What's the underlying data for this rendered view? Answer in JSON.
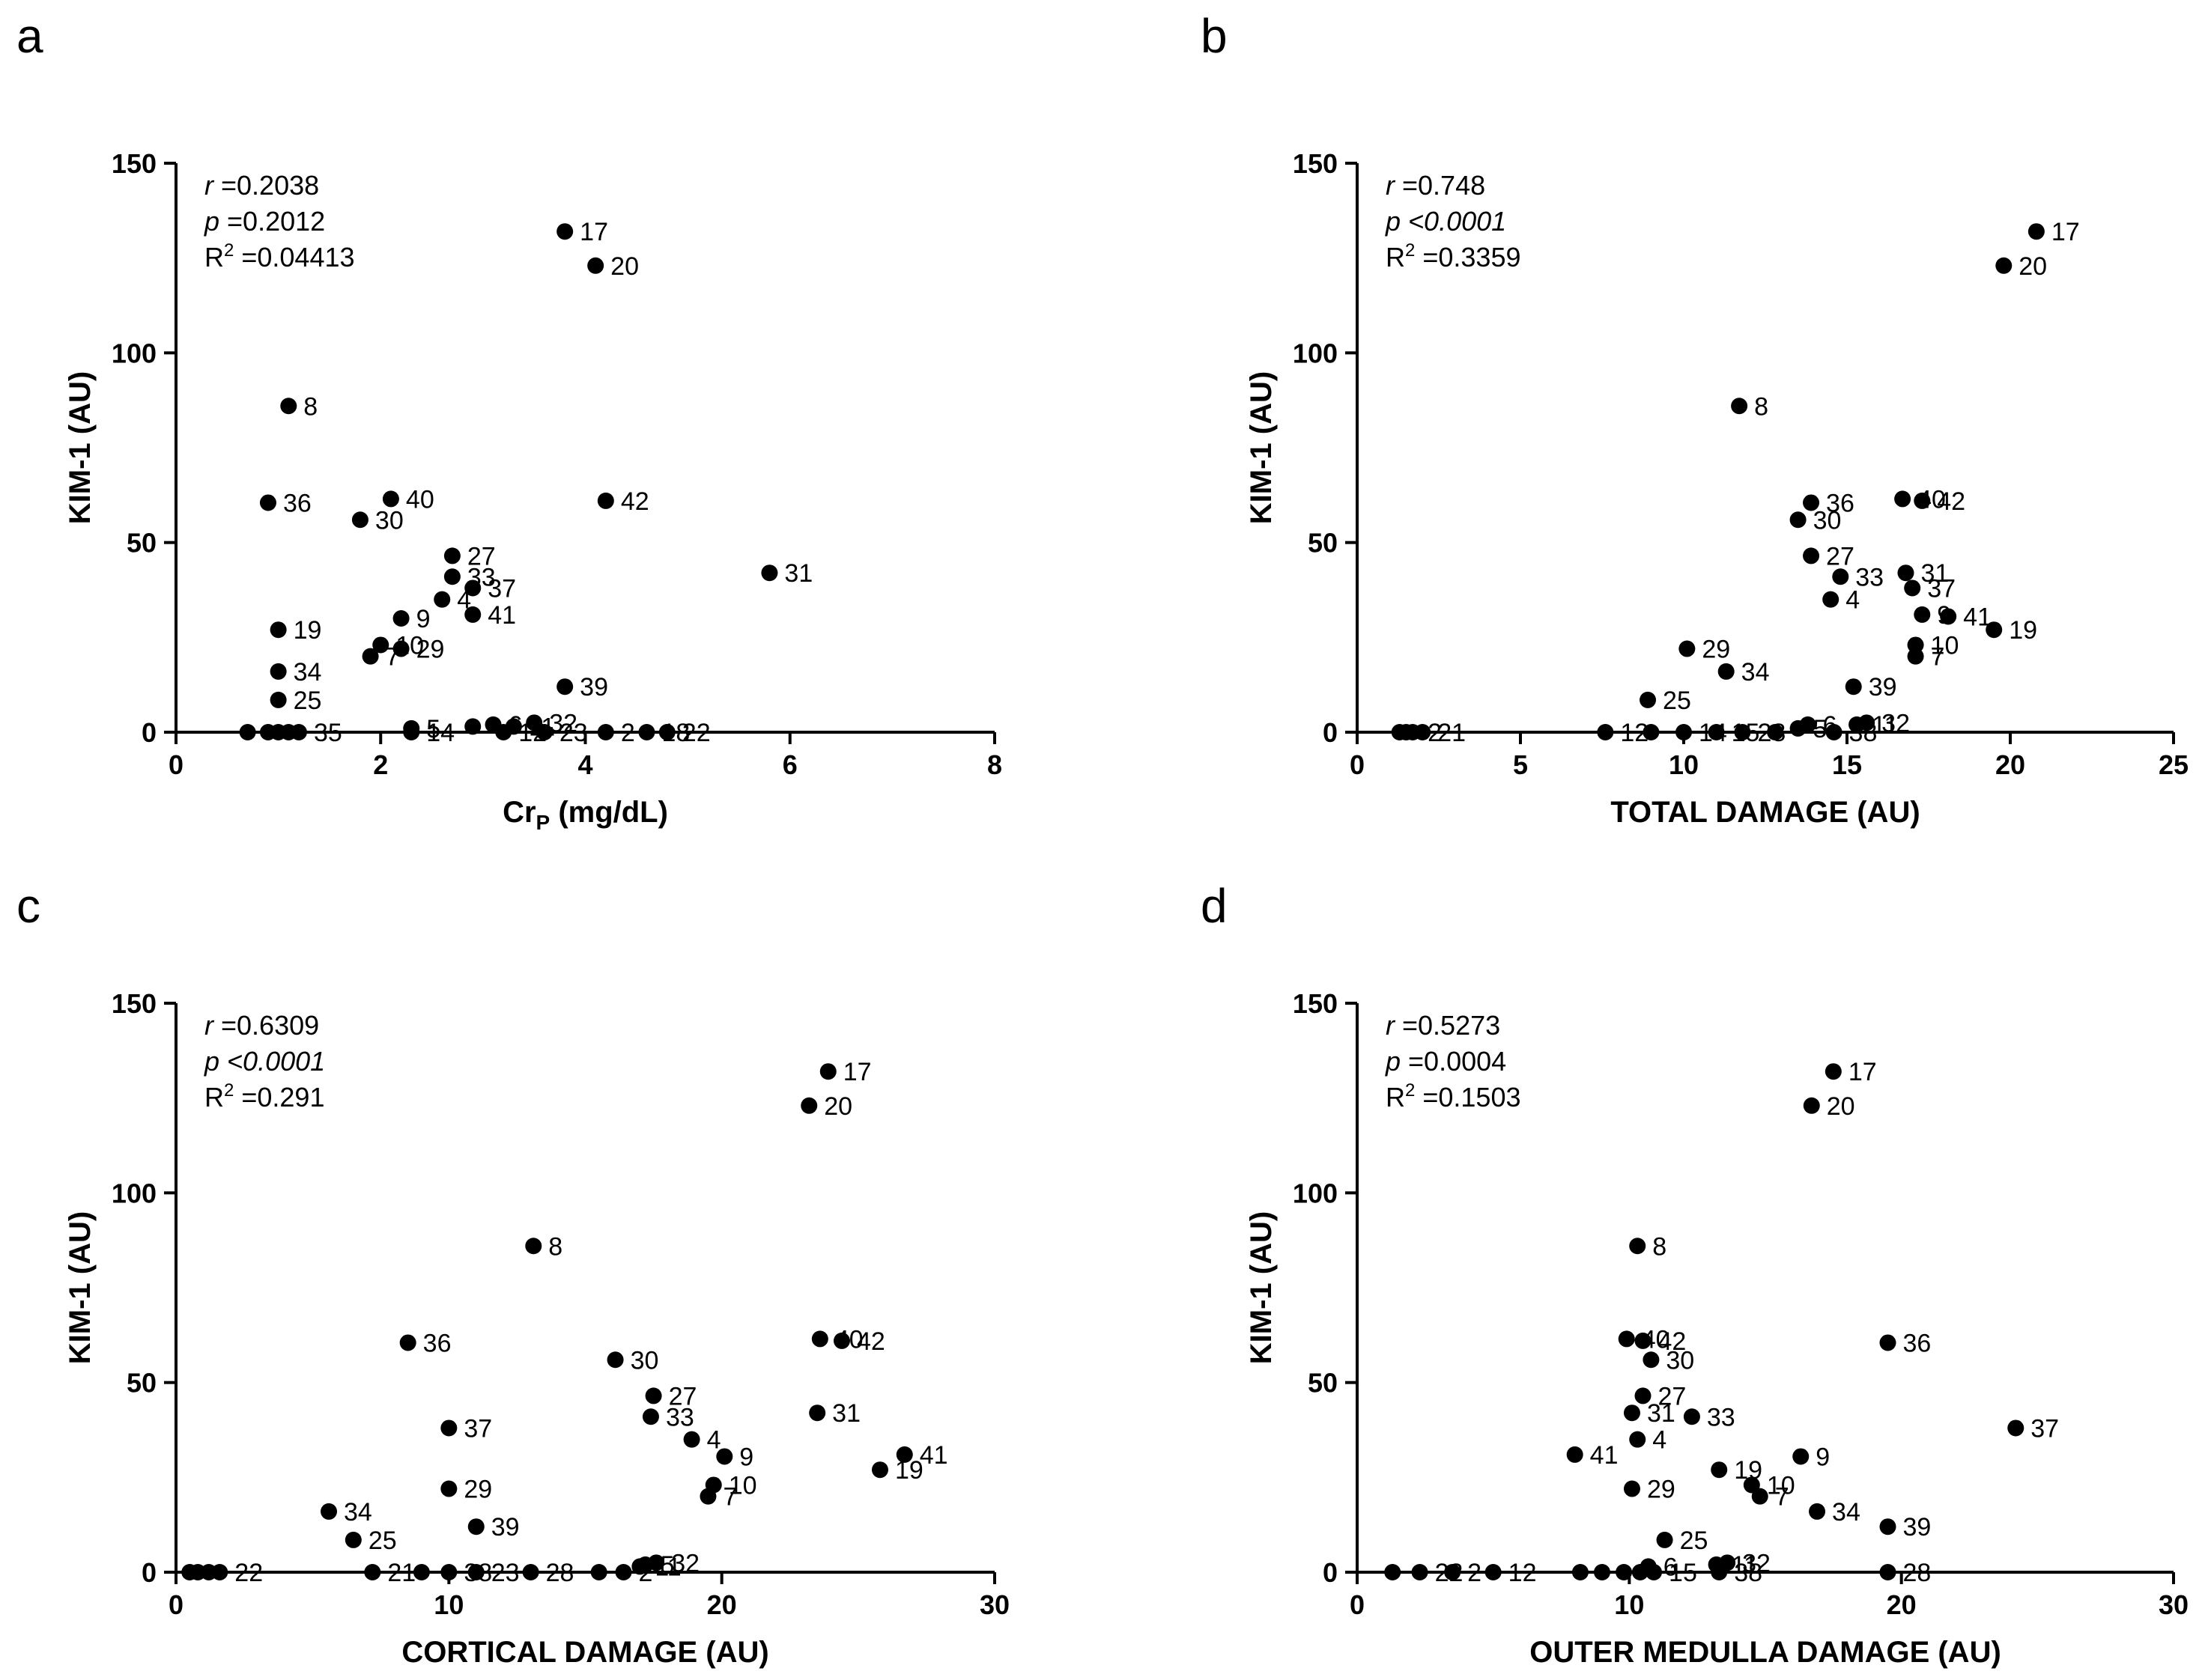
{
  "chart_data": [
    {
      "type": "scatter",
      "panel": "a",
      "xlabel": "Cr",
      "xlabel_sub": "P",
      "xlabel_tail": " (mg/dL)",
      "ylabel": "KIM-1 (AU)",
      "xlim": [
        0,
        8
      ],
      "ylim": [
        0,
        150
      ],
      "xticks": [
        "0",
        "2",
        "4",
        "6",
        "8"
      ],
      "yticks": [
        "0",
        "50",
        "100",
        "150"
      ],
      "stats": {
        "r": "=0.2038",
        "p": "=0.2012",
        "r2": "=0.04413"
      },
      "points": [
        {
          "x": 3.8,
          "y": 132,
          "label": "17"
        },
        {
          "x": 4.1,
          "y": 123,
          "label": "20"
        },
        {
          "x": 1.1,
          "y": 86,
          "label": "8"
        },
        {
          "x": 0.9,
          "y": 60.5,
          "label": "36"
        },
        {
          "x": 2.1,
          "y": 61.5,
          "label": "40"
        },
        {
          "x": 1.8,
          "y": 56,
          "label": "30"
        },
        {
          "x": 4.2,
          "y": 61,
          "label": "42"
        },
        {
          "x": 2.7,
          "y": 46.5,
          "label": "27"
        },
        {
          "x": 2.7,
          "y": 41,
          "label": "33"
        },
        {
          "x": 2.9,
          "y": 38,
          "label": "37"
        },
        {
          "x": 2.6,
          "y": 35,
          "label": "4"
        },
        {
          "x": 2.9,
          "y": 31,
          "label": "41"
        },
        {
          "x": 5.8,
          "y": 42,
          "label": "31"
        },
        {
          "x": 2.2,
          "y": 30,
          "label": "9"
        },
        {
          "x": 1.0,
          "y": 27,
          "label": "19"
        },
        {
          "x": 2.0,
          "y": 23,
          "label": "10"
        },
        {
          "x": 2.2,
          "y": 22,
          "label": "29"
        },
        {
          "x": 1.9,
          "y": 20,
          "label": "7"
        },
        {
          "x": 1.0,
          "y": 16,
          "label": "34"
        },
        {
          "x": 3.8,
          "y": 12,
          "label": "39"
        },
        {
          "x": 1.0,
          "y": 8.5,
          "label": "25"
        },
        {
          "x": 3.5,
          "y": 2.5,
          "label": "32"
        },
        {
          "x": 3.1,
          "y": 2,
          "label": "6"
        },
        {
          "x": 3.3,
          "y": 1.5,
          "label": "11"
        },
        {
          "x": 2.3,
          "y": 1,
          "label": "5"
        },
        {
          "x": 2.9,
          "y": 1.5,
          "label": ""
        },
        {
          "x": 0.7,
          "y": 0,
          "label": ""
        },
        {
          "x": 0.9,
          "y": 0,
          "label": ""
        },
        {
          "x": 1.0,
          "y": 0,
          "label": ""
        },
        {
          "x": 1.1,
          "y": 0,
          "label": ""
        },
        {
          "x": 1.2,
          "y": 0,
          "label": "35"
        },
        {
          "x": 2.3,
          "y": 0,
          "label": "14"
        },
        {
          "x": 3.2,
          "y": 0,
          "label": "12"
        },
        {
          "x": 3.6,
          "y": 0,
          "label": "23"
        },
        {
          "x": 4.2,
          "y": 0,
          "label": "2"
        },
        {
          "x": 4.6,
          "y": 0,
          "label": "18"
        },
        {
          "x": 4.8,
          "y": 0,
          "label": "22"
        }
      ]
    },
    {
      "type": "scatter",
      "panel": "b",
      "xlabel": "TOTAL DAMAGE (AU)",
      "ylabel": "KIM-1 (AU)",
      "xlim": [
        0,
        25
      ],
      "ylim": [
        0,
        150
      ],
      "xticks": [
        "0",
        "5",
        "10",
        "15",
        "20",
        "25"
      ],
      "yticks": [
        "0",
        "50",
        "100",
        "150"
      ],
      "stats": {
        "r": "=0.748",
        "p": "<0.0001",
        "r2": "=0.3359"
      },
      "points": [
        {
          "x": 20.8,
          "y": 132,
          "label": "17"
        },
        {
          "x": 19.8,
          "y": 123,
          "label": "20"
        },
        {
          "x": 11.7,
          "y": 86,
          "label": "8"
        },
        {
          "x": 13.9,
          "y": 60.5,
          "label": "36"
        },
        {
          "x": 13.5,
          "y": 56,
          "label": "30"
        },
        {
          "x": 16.7,
          "y": 61.5,
          "label": "40"
        },
        {
          "x": 17.3,
          "y": 61,
          "label": "42"
        },
        {
          "x": 13.9,
          "y": 46.5,
          "label": "27"
        },
        {
          "x": 14.8,
          "y": 41,
          "label": "33"
        },
        {
          "x": 16.8,
          "y": 42,
          "label": "31"
        },
        {
          "x": 17.0,
          "y": 38,
          "label": "37"
        },
        {
          "x": 14.5,
          "y": 35,
          "label": "4"
        },
        {
          "x": 17.3,
          "y": 31,
          "label": "9"
        },
        {
          "x": 18.1,
          "y": 30.5,
          "label": "41"
        },
        {
          "x": 19.5,
          "y": 27,
          "label": "19"
        },
        {
          "x": 17.1,
          "y": 23,
          "label": "10"
        },
        {
          "x": 17.1,
          "y": 20,
          "label": "7"
        },
        {
          "x": 10.1,
          "y": 22,
          "label": "29"
        },
        {
          "x": 11.3,
          "y": 16,
          "label": "34"
        },
        {
          "x": 15.2,
          "y": 12,
          "label": "39"
        },
        {
          "x": 8.9,
          "y": 8.5,
          "label": "25"
        },
        {
          "x": 15.6,
          "y": 2.5,
          "label": "32"
        },
        {
          "x": 15.3,
          "y": 2,
          "label": "11"
        },
        {
          "x": 13.8,
          "y": 2,
          "label": "6"
        },
        {
          "x": 13.5,
          "y": 1,
          "label": "5"
        },
        {
          "x": 1.3,
          "y": 0,
          "label": ""
        },
        {
          "x": 1.5,
          "y": 0,
          "label": ""
        },
        {
          "x": 1.7,
          "y": 0,
          "label": "2"
        },
        {
          "x": 2.0,
          "y": 0,
          "label": "21"
        },
        {
          "x": 7.6,
          "y": 0,
          "label": "12"
        },
        {
          "x": 9.0,
          "y": 0,
          "label": ""
        },
        {
          "x": 10.0,
          "y": 0,
          "label": "14"
        },
        {
          "x": 11.0,
          "y": 0,
          "label": "15"
        },
        {
          "x": 11.8,
          "y": 0,
          "label": "28"
        },
        {
          "x": 12.8,
          "y": 0,
          "label": ""
        },
        {
          "x": 14.6,
          "y": 0,
          "label": "38"
        }
      ]
    },
    {
      "type": "scatter",
      "panel": "c",
      "xlabel": "CORTICAL DAMAGE (AU)",
      "ylabel": "KIM-1 (AU)",
      "xlim": [
        0,
        30
      ],
      "ylim": [
        0,
        150
      ],
      "xticks": [
        "0",
        "10",
        "20",
        "30"
      ],
      "yticks": [
        "0",
        "50",
        "100",
        "150"
      ],
      "stats": {
        "r": "=0.6309",
        "p": "<0.0001",
        "r2": "=0.291"
      },
      "points": [
        {
          "x": 23.9,
          "y": 132,
          "label": "17"
        },
        {
          "x": 23.2,
          "y": 123,
          "label": "20"
        },
        {
          "x": 13.1,
          "y": 86,
          "label": "8"
        },
        {
          "x": 8.5,
          "y": 60.5,
          "label": "36"
        },
        {
          "x": 16.1,
          "y": 56,
          "label": "30"
        },
        {
          "x": 23.6,
          "y": 61.5,
          "label": "40"
        },
        {
          "x": 24.4,
          "y": 61,
          "label": "42"
        },
        {
          "x": 17.5,
          "y": 46.5,
          "label": "27"
        },
        {
          "x": 17.4,
          "y": 41,
          "label": "33"
        },
        {
          "x": 23.5,
          "y": 42,
          "label": "31"
        },
        {
          "x": 10.0,
          "y": 38,
          "label": "37"
        },
        {
          "x": 18.9,
          "y": 35,
          "label": "4"
        },
        {
          "x": 20.1,
          "y": 30.5,
          "label": "9"
        },
        {
          "x": 26.7,
          "y": 31,
          "label": "41"
        },
        {
          "x": 25.8,
          "y": 27,
          "label": "19"
        },
        {
          "x": 19.7,
          "y": 23,
          "label": "10"
        },
        {
          "x": 19.5,
          "y": 20,
          "label": "7"
        },
        {
          "x": 10.0,
          "y": 22,
          "label": "29"
        },
        {
          "x": 5.6,
          "y": 16,
          "label": "34"
        },
        {
          "x": 11.0,
          "y": 12,
          "label": "39"
        },
        {
          "x": 6.5,
          "y": 8.5,
          "label": "25"
        },
        {
          "x": 17.6,
          "y": 2.5,
          "label": "32"
        },
        {
          "x": 17.2,
          "y": 2,
          "label": "5"
        },
        {
          "x": 17.0,
          "y": 1.5,
          "label": "11"
        },
        {
          "x": 16.4,
          "y": 0,
          "label": "2"
        },
        {
          "x": 0.5,
          "y": 0,
          "label": ""
        },
        {
          "x": 0.8,
          "y": 0,
          "label": ""
        },
        {
          "x": 1.2,
          "y": 0,
          "label": ""
        },
        {
          "x": 1.6,
          "y": 0,
          "label": "22"
        },
        {
          "x": 7.2,
          "y": 0,
          "label": "21"
        },
        {
          "x": 9.0,
          "y": 0,
          "label": ""
        },
        {
          "x": 10.0,
          "y": 0,
          "label": "38"
        },
        {
          "x": 11.0,
          "y": 0,
          "label": "23"
        },
        {
          "x": 13.0,
          "y": 0,
          "label": "28"
        },
        {
          "x": 15.5,
          "y": 0,
          "label": ""
        }
      ]
    },
    {
      "type": "scatter",
      "panel": "d",
      "xlabel": "OUTER MEDULLA DAMAGE (AU)",
      "ylabel": "KIM-1 (AU)",
      "xlim": [
        0,
        30
      ],
      "ylim": [
        0,
        150
      ],
      "xticks": [
        "0",
        "10",
        "20",
        "30"
      ],
      "yticks": [
        "0",
        "50",
        "100",
        "150"
      ],
      "stats": {
        "r": "=0.5273",
        "p": "=0.0004",
        "r2": "=0.1503"
      },
      "points": [
        {
          "x": 17.5,
          "y": 132,
          "label": "17"
        },
        {
          "x": 16.7,
          "y": 123,
          "label": "20"
        },
        {
          "x": 10.3,
          "y": 86,
          "label": "8"
        },
        {
          "x": 19.5,
          "y": 60.5,
          "label": "36"
        },
        {
          "x": 9.9,
          "y": 61.5,
          "label": "40"
        },
        {
          "x": 10.5,
          "y": 61,
          "label": "42"
        },
        {
          "x": 10.8,
          "y": 56,
          "label": "30"
        },
        {
          "x": 10.5,
          "y": 46.5,
          "label": "27"
        },
        {
          "x": 10.1,
          "y": 42,
          "label": "31"
        },
        {
          "x": 12.3,
          "y": 41,
          "label": "33"
        },
        {
          "x": 24.2,
          "y": 38,
          "label": "37"
        },
        {
          "x": 10.3,
          "y": 35,
          "label": "4"
        },
        {
          "x": 8.0,
          "y": 31,
          "label": "41"
        },
        {
          "x": 16.3,
          "y": 30.5,
          "label": "9"
        },
        {
          "x": 13.3,
          "y": 27,
          "label": "19"
        },
        {
          "x": 14.5,
          "y": 23,
          "label": "10"
        },
        {
          "x": 14.8,
          "y": 20,
          "label": "7"
        },
        {
          "x": 10.1,
          "y": 22,
          "label": "29"
        },
        {
          "x": 16.9,
          "y": 16,
          "label": "34"
        },
        {
          "x": 19.5,
          "y": 12,
          "label": "39"
        },
        {
          "x": 11.3,
          "y": 8.5,
          "label": "25"
        },
        {
          "x": 13.6,
          "y": 2.5,
          "label": "32"
        },
        {
          "x": 13.2,
          "y": 2,
          "label": "11"
        },
        {
          "x": 10.7,
          "y": 1.5,
          "label": "6"
        },
        {
          "x": 19.5,
          "y": 0,
          "label": "28"
        },
        {
          "x": 13.3,
          "y": 0,
          "label": "38"
        },
        {
          "x": 1.3,
          "y": 0,
          "label": ""
        },
        {
          "x": 2.3,
          "y": 0,
          "label": "22"
        },
        {
          "x": 3.5,
          "y": 0,
          "label": "2"
        },
        {
          "x": 5.0,
          "y": 0,
          "label": "12"
        },
        {
          "x": 8.2,
          "y": 0,
          "label": ""
        },
        {
          "x": 9.0,
          "y": 0,
          "label": ""
        },
        {
          "x": 9.8,
          "y": 0,
          "label": ""
        },
        {
          "x": 10.4,
          "y": 0,
          "label": ""
        },
        {
          "x": 10.9,
          "y": 0,
          "label": "15"
        }
      ]
    }
  ]
}
